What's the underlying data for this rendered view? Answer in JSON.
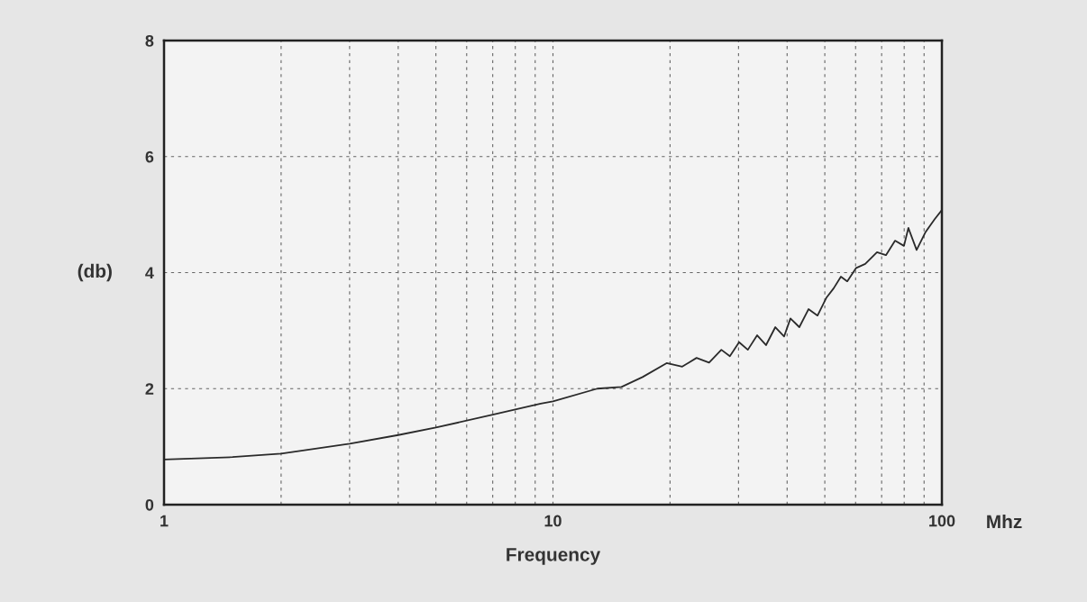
{
  "chart_data": {
    "type": "line",
    "xlabel": "Frequency",
    "ylabel": "(db)",
    "annotations": [
      "Mhz"
    ],
    "log": "x",
    "grid": true,
    "line_style": "solid",
    "marker": "none",
    "xlim": [
      1,
      100
    ],
    "ylim": [
      0,
      8
    ],
    "xticks": [
      1,
      {
        "value": 2,
        "label": null
      },
      {
        "value": 3,
        "label": null
      },
      {
        "value": 4,
        "label": null
      },
      {
        "value": 5,
        "label": null
      },
      {
        "value": 6,
        "label": null
      },
      {
        "value": 7,
        "label": null
      },
      {
        "value": 8,
        "label": null
      },
      {
        "value": 9,
        "label": null
      },
      10,
      {
        "value": 20,
        "label": null
      },
      {
        "value": 30,
        "label": null
      },
      {
        "value": 40,
        "label": null
      },
      {
        "value": 50,
        "label": null
      },
      {
        "value": 60,
        "label": null
      },
      {
        "value": 70,
        "label": null
      },
      {
        "value": 80,
        "label": null
      },
      {
        "value": 90,
        "label": null
      },
      100
    ],
    "yticks": [
      0,
      2,
      4,
      6,
      8
    ],
    "series": [
      {
        "color": "#2a2a2a",
        "x": [
          1,
          1.5,
          2,
          3,
          4,
          5,
          7,
          9.3,
          10,
          13,
          15,
          17,
          19.6,
          21.5,
          23.4,
          25.2,
          27.1,
          28.5,
          30.1,
          31.7,
          33.5,
          35.3,
          37.3,
          39.3,
          40.8,
          43,
          45.4,
          47.9,
          50.5,
          52.7,
          55,
          57.1,
          60.2,
          63.5,
          68.1,
          71.8,
          75.8,
          79.9,
          82,
          86.1,
          90.8,
          95.8,
          100
        ],
        "values": [
          0.78,
          0.82,
          0.88,
          1.05,
          1.2,
          1.33,
          1.55,
          1.74,
          1.78,
          2.0,
          2.03,
          2.2,
          2.44,
          2.38,
          2.53,
          2.45,
          2.67,
          2.56,
          2.8,
          2.67,
          2.92,
          2.75,
          3.06,
          2.9,
          3.21,
          3.06,
          3.37,
          3.26,
          3.57,
          3.73,
          3.93,
          3.85,
          4.08,
          4.15,
          4.35,
          4.3,
          4.55,
          4.46,
          4.77,
          4.39,
          4.7,
          4.92,
          5.08
        ]
      }
    ]
  }
}
